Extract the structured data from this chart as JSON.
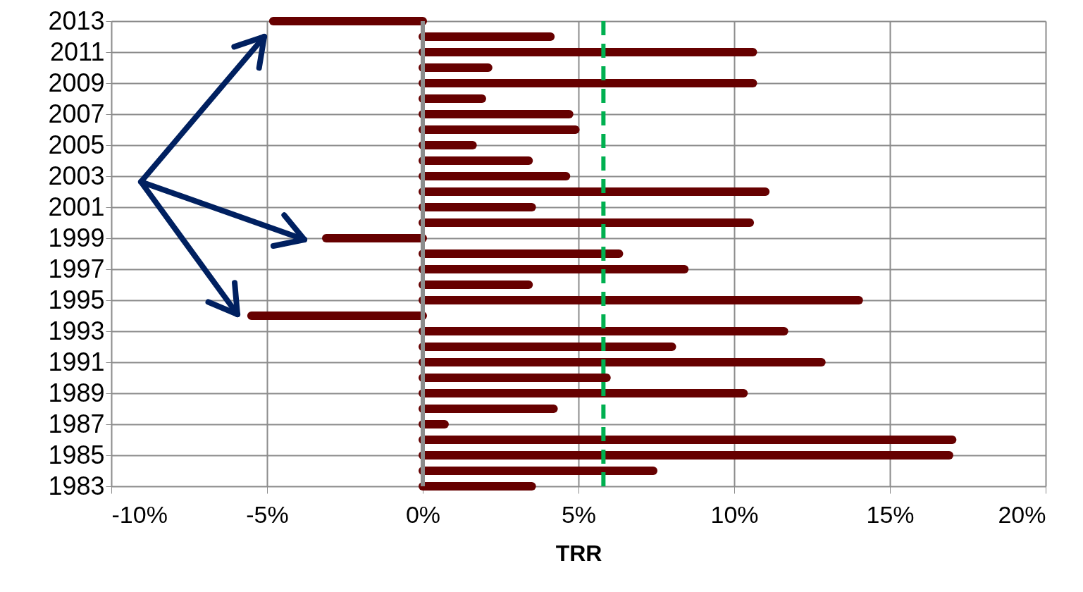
{
  "chart_data": {
    "type": "bar",
    "orientation": "horizontal",
    "xlabel": "TRR",
    "categories": [
      "2013",
      null,
      "2011",
      null,
      "2009",
      null,
      "2007",
      null,
      "2005",
      null,
      "2003",
      null,
      "2001",
      null,
      "1999",
      null,
      "1997",
      null,
      "1995",
      null,
      "1993",
      null,
      "1991",
      null,
      "1989",
      null,
      "1987",
      null,
      "1985",
      null,
      "1983"
    ],
    "values": [
      -4.8,
      4.1,
      10.6,
      2.1,
      10.6,
      1.9,
      4.7,
      4.9,
      1.6,
      3.4,
      4.6,
      11.0,
      3.5,
      10.5,
      -3.1,
      6.3,
      8.4,
      3.4,
      14.0,
      -5.5,
      11.6,
      8.0,
      12.8,
      5.9,
      10.3,
      4.2,
      0.7,
      17.0,
      16.9,
      7.4,
      3.5
    ],
    "color": "#660000",
    "xlim": [
      -10,
      20
    ],
    "xticks": [
      {
        "value": -10,
        "label": "-10%"
      },
      {
        "value": -5,
        "label": "-5%"
      },
      {
        "value": 0,
        "label": "0%"
      },
      {
        "value": 5,
        "label": "5%"
      },
      {
        "value": 10,
        "label": "10%"
      },
      {
        "value": 15,
        "label": "15%"
      },
      {
        "value": 20,
        "label": "20%"
      }
    ],
    "ref_lines": [
      {
        "axis": "x",
        "value": 5.8,
        "label": null,
        "color": "#00b050",
        "line_style": "dashed"
      }
    ],
    "grid": true
  }
}
